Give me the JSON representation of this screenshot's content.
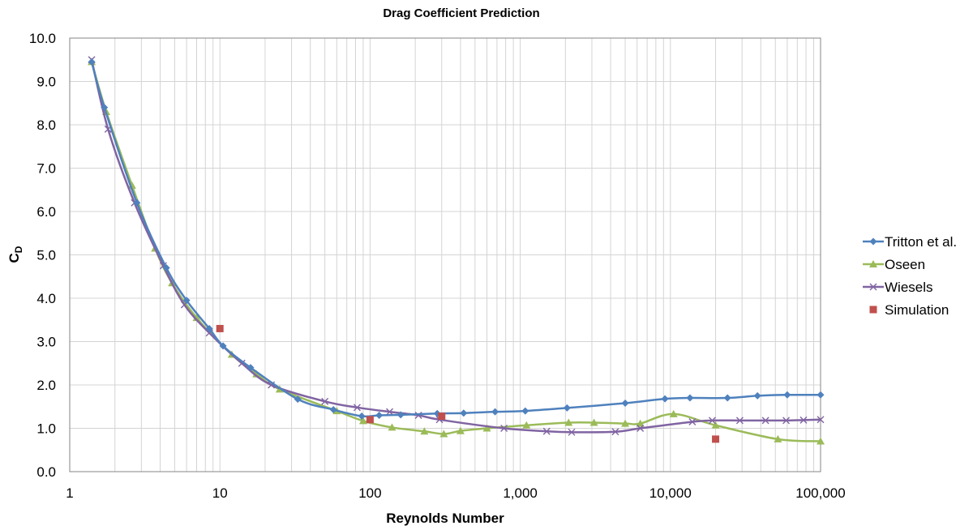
{
  "chart_data": {
    "type": "line",
    "title": "Drag Coefficient Prediction",
    "xlabel": "Reynolds Number",
    "ylabel": "C",
    "ylabel_sub": "D",
    "x_scale": "log",
    "xlim": [
      1,
      100000
    ],
    "ylim": [
      0,
      10
    ],
    "x_ticks": [
      1,
      10,
      100,
      1000,
      10000,
      100000
    ],
    "x_tick_labels": [
      "1",
      "10",
      "100",
      "1,000",
      "10,000",
      "100,000"
    ],
    "y_ticks": [
      0,
      1,
      2,
      3,
      4,
      5,
      6,
      7,
      8,
      9,
      10
    ],
    "y_tick_labels": [
      "0.0",
      "1.0",
      "2.0",
      "3.0",
      "4.0",
      "5.0",
      "6.0",
      "7.0",
      "8.0",
      "9.0",
      "10.0"
    ],
    "grid": true,
    "legend_position": "right",
    "series": [
      {
        "name": "Tritton et al.",
        "color": "#4f81bd",
        "marker": "diamond",
        "line": true,
        "points": [
          [
            1.4,
            9.45
          ],
          [
            1.7,
            8.4
          ],
          [
            2.8,
            6.2
          ],
          [
            4.4,
            4.7
          ],
          [
            6.0,
            3.95
          ],
          [
            8.5,
            3.3
          ],
          [
            10.5,
            2.9
          ],
          [
            16,
            2.4
          ],
          [
            33,
            1.67
          ],
          [
            57,
            1.43
          ],
          [
            88,
            1.28
          ],
          [
            115,
            1.3
          ],
          [
            160,
            1.31
          ],
          [
            280,
            1.34
          ],
          [
            420,
            1.35
          ],
          [
            680,
            1.38
          ],
          [
            1080,
            1.4
          ],
          [
            2050,
            1.47
          ],
          [
            5000,
            1.58
          ],
          [
            9200,
            1.68
          ],
          [
            13500,
            1.7
          ],
          [
            24000,
            1.7
          ],
          [
            38000,
            1.75
          ],
          [
            60000,
            1.77
          ],
          [
            100000,
            1.77
          ]
        ]
      },
      {
        "name": "Oseen",
        "color": "#9bbb59",
        "marker": "triangle",
        "line": true,
        "points": [
          [
            1.4,
            9.45
          ],
          [
            1.75,
            8.3
          ],
          [
            2.6,
            6.6
          ],
          [
            3.7,
            5.15
          ],
          [
            4.8,
            4.35
          ],
          [
            7.0,
            3.55
          ],
          [
            12,
            2.7
          ],
          [
            17.5,
            2.25
          ],
          [
            25,
            1.9
          ],
          [
            60,
            1.4
          ],
          [
            90,
            1.17
          ],
          [
            140,
            1.02
          ],
          [
            230,
            0.93
          ],
          [
            310,
            0.87
          ],
          [
            400,
            0.94
          ],
          [
            600,
            1.0
          ],
          [
            1100,
            1.07
          ],
          [
            2100,
            1.13
          ],
          [
            3100,
            1.13
          ],
          [
            5000,
            1.11
          ],
          [
            6300,
            1.11
          ],
          [
            10500,
            1.33
          ],
          [
            20000,
            1.07
          ],
          [
            52000,
            0.75
          ],
          [
            100000,
            0.7
          ]
        ]
      },
      {
        "name": "Wiesels",
        "color": "#8064a2",
        "marker": "x",
        "line": true,
        "points": [
          [
            1.4,
            9.5
          ],
          [
            1.8,
            7.9
          ],
          [
            2.7,
            6.2
          ],
          [
            4.2,
            4.75
          ],
          [
            5.8,
            3.85
          ],
          [
            8.5,
            3.2
          ],
          [
            14,
            2.5
          ],
          [
            22,
            2.0
          ],
          [
            50,
            1.62
          ],
          [
            82,
            1.48
          ],
          [
            135,
            1.38
          ],
          [
            210,
            1.3
          ],
          [
            290,
            1.2
          ],
          [
            780,
            1.0
          ],
          [
            1500,
            0.93
          ],
          [
            2200,
            0.91
          ],
          [
            4300,
            0.92
          ],
          [
            6300,
            1.0
          ],
          [
            14000,
            1.15
          ],
          [
            19000,
            1.18
          ],
          [
            29000,
            1.18
          ],
          [
            43000,
            1.18
          ],
          [
            59000,
            1.18
          ],
          [
            77000,
            1.19
          ],
          [
            100000,
            1.2
          ]
        ]
      },
      {
        "name": "Simulation",
        "color": "#c0504d",
        "marker": "square",
        "line": false,
        "points": [
          [
            10,
            3.3
          ],
          [
            100,
            1.2
          ],
          [
            300,
            1.28
          ],
          [
            20000,
            0.75
          ]
        ]
      }
    ]
  }
}
